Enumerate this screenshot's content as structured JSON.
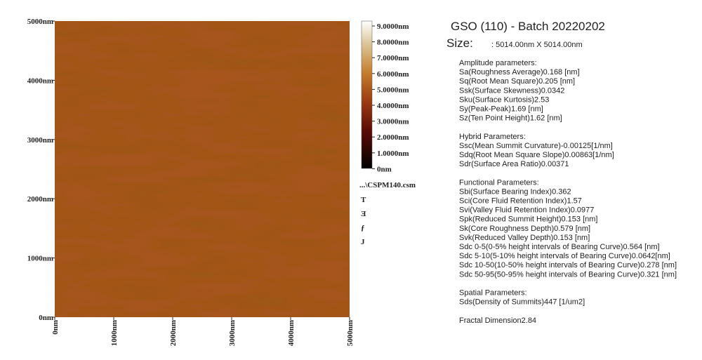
{
  "afm_image": {
    "y_ticks": [
      "0nm",
      "1000nm",
      "2000nm",
      "3000nm",
      "4000nm",
      "5000nm"
    ],
    "x_ticks": [
      "0nm",
      "1000nm",
      "2000nm",
      "3000nm",
      "4000nm",
      "5000nm"
    ]
  },
  "colorbar": {
    "labels": [
      "9.0000nm",
      "8.0000nm",
      "7.0000nm",
      "6.0000nm",
      "5.0000nm",
      "4.0000nm",
      "3.0000nm",
      "2.0000nm",
      "1.0000nm",
      "0nm"
    ]
  },
  "file_name": "...\\CSPM140.csm",
  "clipped_text": [
    "T",
    "Ǝ",
    "ƒ",
    "J"
  ],
  "report": {
    "title": "GSO (110) - Batch 20220202",
    "size_label": "Size:",
    "size_value": ": 5014.00nm X 5014.00nm",
    "sections": [
      {
        "heading": "Amplitude parameters:",
        "items": [
          "Sa(Roughness Average)0.168 [nm]",
          "Sq(Root Mean Square)0.205 [nm]",
          "Ssk(Surface Skewness)0.0342",
          "Sku(Surface Kurtosis)2.53",
          "Sy(Peak-Peak)1.69  [nm]",
          "Sz(Ten Point Height)1.62  [nm]"
        ]
      },
      {
        "heading": "Hybrid Parameters:",
        "items": [
          "Ssc(Mean Summit Curvature)-0.00125[1/nm]",
          "Sdq(Root Mean Square Slope)0.00863[1/nm]",
          "Sdr(Surface Area Ratio)0.00371"
        ]
      },
      {
        "heading": "Functional Parameters:",
        "items": [
          "Sbi(Surface Bearing Index)0.362",
          "Sci(Core Fluid Retention Index)1.57",
          "Svi(Valley Fluid Retention Index)0.0977",
          "Spk(Reduced Summit Height)0.153 [nm]",
          "Sk(Core Roughness Depth)0.579 [nm]",
          "Svk(Reduced Valley Depth)0.153 [nm]",
          "Sdc 0-5(0-5% height intervals of Bearing Curve)0.564 [nm]",
          "Sdc 5-10(5-10% height intervals of Bearing Curve)0.0642[nm]",
          "Sdc 10-50(10-50% height intervals of Bearing Curve)0.278 [nm]",
          "Sdc 50-95(50-95% height intervals of Bearing Curve)0.321 [nm]"
        ]
      },
      {
        "heading": "Spatial Parameters:",
        "items": [
          "Sds(Density of Summits)447   [1/um2]"
        ]
      },
      {
        "heading": "Fractal Dimension2.84",
        "items": []
      }
    ]
  }
}
